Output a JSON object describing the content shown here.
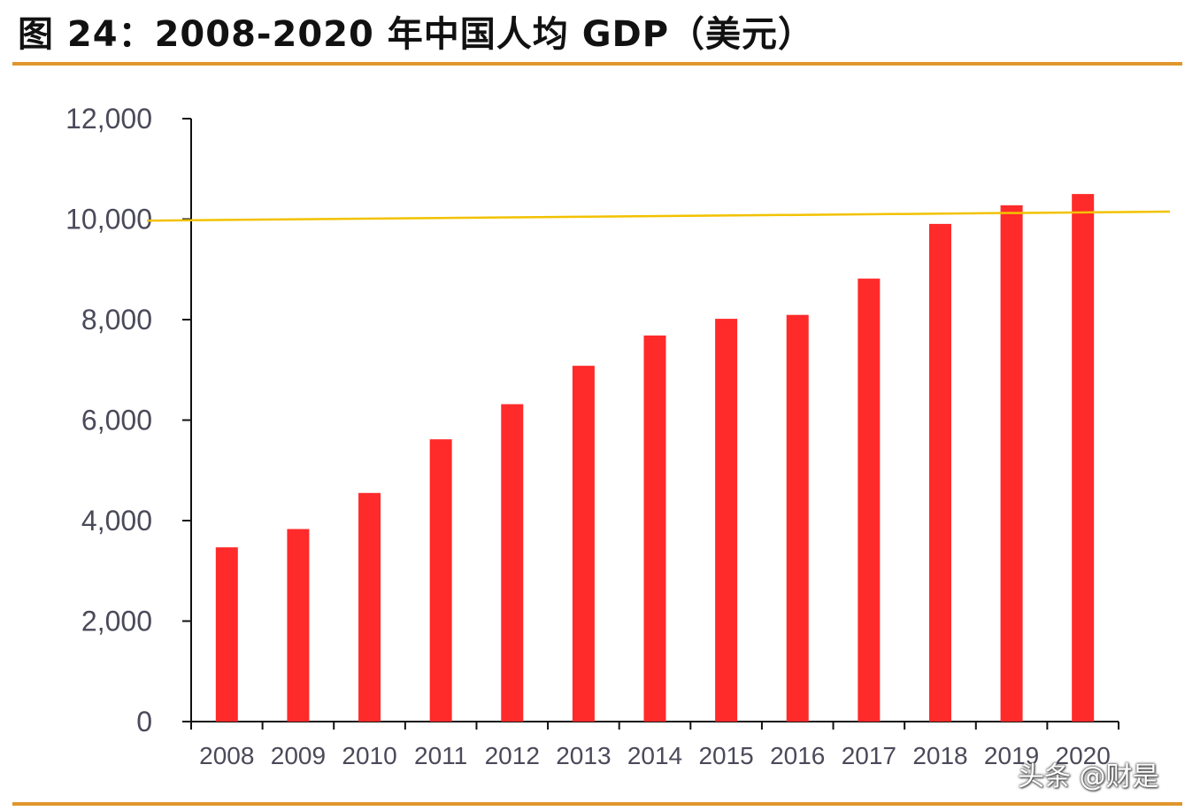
{
  "figure": {
    "title": "图 24：2008-2020 年中国人均 GDP（美元）"
  },
  "colors": {
    "bar": "#ff2a2a",
    "reference_line": "#f2c200",
    "rule": "#e0962c",
    "axis": "#111111",
    "tick_text": "#4a4a5a"
  },
  "chart_data": {
    "type": "bar",
    "title": "2008-2020 年中国人均 GDP（美元）",
    "xlabel": "",
    "ylabel": "",
    "categories": [
      "2008",
      "2009",
      "2010",
      "2011",
      "2012",
      "2013",
      "2014",
      "2015",
      "2016",
      "2017",
      "2018",
      "2019",
      "2020"
    ],
    "values": [
      3468,
      3832,
      4550,
      5618,
      6317,
      7081,
      7684,
      8016,
      8094,
      8817,
      9905,
      10276,
      10500
    ],
    "ylim": [
      0,
      12000
    ],
    "yticks": [
      0,
      2000,
      4000,
      6000,
      8000,
      10000,
      12000
    ],
    "ytick_labels": [
      "0",
      "2,000",
      "4,000",
      "6,000",
      "8,000",
      "10,000",
      "12,000"
    ],
    "grid": false,
    "reference_line": {
      "start_value": 9970,
      "end_value": 10150
    }
  },
  "watermark": "头条 @财是"
}
